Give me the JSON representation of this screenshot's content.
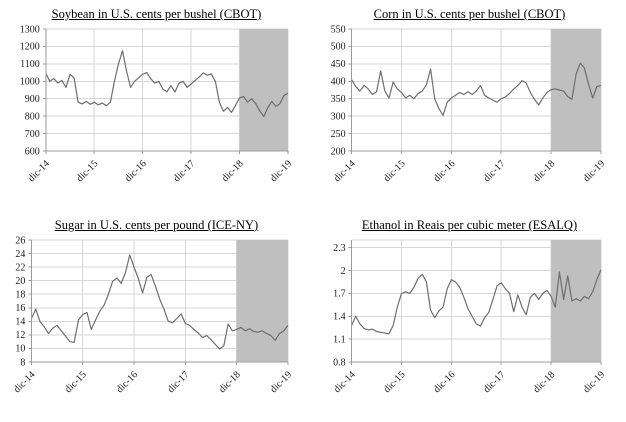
{
  "colors": {
    "line": "#6e6e6e",
    "shade": "#bfbfbf",
    "grid": "#d6d6d6",
    "axis": "#9b9b9b",
    "text": "#1a1a1a",
    "background": "#ffffff"
  },
  "chart_data": [
    {
      "type": "line",
      "title": "Soybean in U.S. cents per bushel (CBOT)",
      "xlabel": "",
      "ylabel": "",
      "x_ticks": [
        "dic-14",
        "dic-15",
        "dic-16",
        "dic-17",
        "dic-18",
        "dic-19"
      ],
      "y_ticks": [
        1300,
        1200,
        1100,
        1000,
        900,
        800,
        700,
        600
      ],
      "ylim": [
        600,
        1300
      ],
      "grid": true,
      "legend": "none",
      "shaded_region": {
        "from": "dic-18",
        "to": "dic-19"
      },
      "series": [
        {
          "name": "soybean-price",
          "values": [
            1045,
            1000,
            1015,
            990,
            1005,
            965,
            1040,
            1020,
            880,
            870,
            885,
            868,
            880,
            865,
            875,
            860,
            880,
            1000,
            1100,
            1175,
            1060,
            965,
            1000,
            1020,
            1040,
            1050,
            1015,
            990,
            1000,
            955,
            940,
            975,
            938,
            990,
            1000,
            965,
            985,
            1005,
            1025,
            1048,
            1035,
            1042,
            1000,
            880,
            828,
            850,
            822,
            862,
            905,
            912,
            880,
            900,
            872,
            830,
            798,
            848,
            885,
            855,
            872,
            918,
            932
          ]
        }
      ]
    },
    {
      "type": "line",
      "title": "Corn in U.S. cents per bushel (CBOT)",
      "xlabel": "",
      "ylabel": "",
      "x_ticks": [
        "dic-14",
        "dic-15",
        "dic-16",
        "dic-17",
        "dic-18",
        "dic-19"
      ],
      "y_ticks": [
        550,
        500,
        450,
        400,
        350,
        300,
        250,
        200
      ],
      "ylim": [
        200,
        550
      ],
      "grid": true,
      "legend": "none",
      "shaded_region": {
        "from": "dic-18",
        "to": "dic-19"
      },
      "series": [
        {
          "name": "corn-price",
          "values": [
            405,
            385,
            372,
            388,
            378,
            362,
            370,
            430,
            372,
            352,
            398,
            378,
            368,
            352,
            360,
            350,
            365,
            372,
            390,
            435,
            350,
            322,
            302,
            340,
            352,
            360,
            368,
            362,
            370,
            362,
            372,
            388,
            360,
            352,
            346,
            340,
            350,
            355,
            365,
            378,
            388,
            402,
            395,
            368,
            348,
            332,
            352,
            368,
            376,
            378,
            375,
            372,
            356,
            348,
            420,
            452,
            438,
            392,
            352,
            385,
            388
          ]
        }
      ]
    },
    {
      "type": "line",
      "title": "Sugar in U.S. cents per pound (ICE-NY)",
      "xlabel": "",
      "ylabel": "",
      "x_ticks": [
        "dic-14",
        "dic-15",
        "dic-16",
        "dic-17",
        "dic-18",
        "dic-19"
      ],
      "y_ticks": [
        26,
        24,
        22,
        20,
        18,
        16,
        14,
        12,
        10,
        8
      ],
      "ylim": [
        8,
        26
      ],
      "grid": true,
      "legend": "none",
      "shaded_region": {
        "from": "dic-18",
        "to": "dic-19"
      },
      "series": [
        {
          "name": "sugar-price",
          "values": [
            14.4,
            15.8,
            14.0,
            13.2,
            12.2,
            13.0,
            13.4,
            12.6,
            11.8,
            11.0,
            10.9,
            14.2,
            15.0,
            15.3,
            12.8,
            14.2,
            15.5,
            16.4,
            18.0,
            19.9,
            20.4,
            19.6,
            21.2,
            23.8,
            22.0,
            20.3,
            18.2,
            20.5,
            20.9,
            19.2,
            17.3,
            15.8,
            14.0,
            13.8,
            14.4,
            15.1,
            13.7,
            13.4,
            12.8,
            12.3,
            11.6,
            11.9,
            11.3,
            10.6,
            9.9,
            10.4,
            13.6,
            12.6,
            12.8,
            13.1,
            12.6,
            12.9,
            12.5,
            12.4,
            12.6,
            12.2,
            11.9,
            11.2,
            12.2,
            12.6,
            13.4
          ]
        }
      ]
    },
    {
      "type": "line",
      "title": "Ethanol in Reais per cubic meter (ESALQ)",
      "xlabel": "",
      "ylabel": "",
      "x_ticks": [
        "dic-14",
        "dic-15",
        "dic-16",
        "dic-17",
        "dic-18",
        "dic-19"
      ],
      "y_ticks": [
        2.3,
        2,
        1.7,
        1.4,
        1.1,
        0.8
      ],
      "ylim": [
        0.8,
        2.4
      ],
      "grid": true,
      "legend": "none",
      "shaded_region": {
        "from": "dic-18",
        "to": "dic-19"
      },
      "series": [
        {
          "name": "ethanol-price",
          "values": [
            1.28,
            1.4,
            1.3,
            1.24,
            1.22,
            1.23,
            1.2,
            1.19,
            1.18,
            1.17,
            1.28,
            1.52,
            1.7,
            1.72,
            1.7,
            1.78,
            1.9,
            1.95,
            1.85,
            1.48,
            1.38,
            1.47,
            1.52,
            1.76,
            1.88,
            1.85,
            1.78,
            1.65,
            1.5,
            1.4,
            1.3,
            1.27,
            1.38,
            1.45,
            1.62,
            1.8,
            1.84,
            1.76,
            1.7,
            1.46,
            1.68,
            1.52,
            1.42,
            1.65,
            1.7,
            1.62,
            1.7,
            1.74,
            1.66,
            1.52,
            1.98,
            1.62,
            1.93,
            1.6,
            1.63,
            1.6,
            1.66,
            1.63,
            1.72,
            1.88,
            2.01
          ]
        }
      ]
    }
  ]
}
